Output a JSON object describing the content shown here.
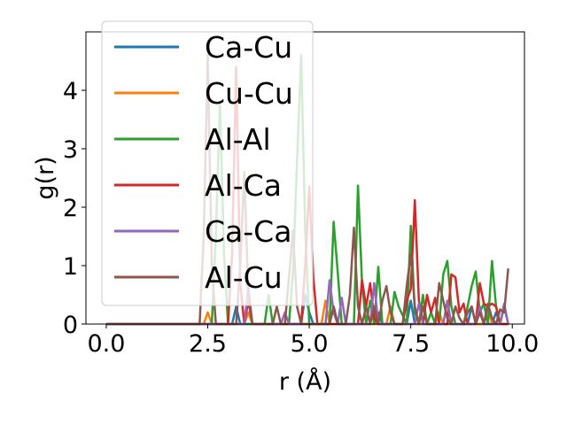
{
  "chart_data": {
    "type": "line",
    "xlabel": "r (Å)",
    "ylabel": "g(r)",
    "xlim": [
      -0.5,
      10.3
    ],
    "ylim": [
      0,
      5.0
    ],
    "x_ticks": [
      0.0,
      2.5,
      5.0,
      7.5,
      10.0
    ],
    "x_tick_labels": [
      "0.0",
      "2.5",
      "5.0",
      "7.5",
      "10.0"
    ],
    "y_ticks": [
      0,
      1,
      2,
      3,
      4
    ],
    "y_tick_labels": [
      "0",
      "1",
      "2",
      "3",
      "4"
    ],
    "grid": false,
    "legend_position": "top-left",
    "series": [
      {
        "name": "Ca-Cu",
        "color": "#1f77b4",
        "points": [
          [
            0,
            0
          ],
          [
            3.1,
            0
          ],
          [
            3.2,
            0.3
          ],
          [
            3.3,
            0
          ],
          [
            4.8,
            0
          ],
          [
            4.9,
            0.5
          ],
          [
            5.0,
            0.2
          ],
          [
            5.1,
            0
          ],
          [
            5.5,
            0
          ],
          [
            5.6,
            0.3
          ],
          [
            5.7,
            0
          ],
          [
            6.6,
            0
          ],
          [
            6.7,
            0.2
          ],
          [
            6.8,
            0
          ],
          [
            7.4,
            0
          ],
          [
            7.5,
            0.4
          ],
          [
            7.6,
            0
          ],
          [
            8.9,
            0
          ],
          [
            9.0,
            0.3
          ],
          [
            9.1,
            0
          ],
          [
            9.5,
            0
          ],
          [
            9.6,
            0.2
          ],
          [
            9.7,
            0
          ],
          [
            9.9,
            0
          ]
        ]
      },
      {
        "name": "Cu-Cu",
        "color": "#ff7f0e",
        "points": [
          [
            0,
            0
          ],
          [
            2.4,
            0
          ],
          [
            2.5,
            0.2
          ],
          [
            2.6,
            0
          ],
          [
            3.4,
            0
          ],
          [
            3.5,
            0.2
          ],
          [
            3.6,
            0
          ],
          [
            5.3,
            0
          ],
          [
            5.4,
            0.4
          ],
          [
            5.5,
            0
          ],
          [
            6.9,
            0
          ],
          [
            7.0,
            0.3
          ],
          [
            7.1,
            0
          ],
          [
            8.1,
            0
          ],
          [
            8.2,
            0.2
          ],
          [
            8.3,
            0
          ],
          [
            9.3,
            0
          ],
          [
            9.4,
            0.3
          ],
          [
            9.5,
            0
          ],
          [
            9.9,
            0
          ]
        ]
      },
      {
        "name": "Al-Al",
        "color": "#2ca02c",
        "points": [
          [
            0,
            0
          ],
          [
            2.6,
            0
          ],
          [
            2.7,
            1.5
          ],
          [
            2.8,
            3.8
          ],
          [
            2.9,
            1.2
          ],
          [
            3.0,
            0
          ],
          [
            3.9,
            0
          ],
          [
            4.0,
            0.5
          ],
          [
            4.1,
            0
          ],
          [
            4.5,
            0
          ],
          [
            4.6,
            0.9
          ],
          [
            4.7,
            2.8
          ],
          [
            4.8,
            4.6
          ],
          [
            4.9,
            1.6
          ],
          [
            5.0,
            0
          ],
          [
            5.5,
            0
          ],
          [
            5.6,
            1.75
          ],
          [
            5.7,
            0.9
          ],
          [
            5.8,
            0
          ],
          [
            6.1,
            0
          ],
          [
            6.2,
            2.37
          ],
          [
            6.3,
            0.7
          ],
          [
            6.4,
            0
          ],
          [
            6.5,
            0.4
          ],
          [
            6.6,
            0
          ],
          [
            6.7,
            0.98
          ],
          [
            6.8,
            0
          ],
          [
            7.0,
            0
          ],
          [
            7.1,
            0.55
          ],
          [
            7.2,
            0.3
          ],
          [
            7.4,
            0
          ],
          [
            7.5,
            1.68
          ],
          [
            7.6,
            0.2
          ],
          [
            7.7,
            0
          ],
          [
            7.8,
            0.5
          ],
          [
            7.9,
            0
          ],
          [
            8.0,
            0.2
          ],
          [
            8.1,
            0
          ],
          [
            8.2,
            0
          ],
          [
            8.3,
            0.85
          ],
          [
            8.4,
            1.08
          ],
          [
            8.5,
            0.3
          ],
          [
            8.6,
            0
          ],
          [
            8.8,
            0
          ],
          [
            8.9,
            0.3
          ],
          [
            9.0,
            0.65
          ],
          [
            9.1,
            0.9
          ],
          [
            9.2,
            0.2
          ],
          [
            9.3,
            0.35
          ],
          [
            9.4,
            0
          ],
          [
            9.5,
            1.08
          ],
          [
            9.6,
            0.3
          ],
          [
            9.7,
            0
          ],
          [
            9.8,
            0.3
          ],
          [
            9.9,
            0
          ]
        ]
      },
      {
        "name": "Al-Ca",
        "color": "#d62728",
        "points": [
          [
            0,
            0
          ],
          [
            3.0,
            0
          ],
          [
            3.1,
            1.2
          ],
          [
            3.2,
            4.4
          ],
          [
            3.3,
            0.7
          ],
          [
            3.4,
            0
          ],
          [
            3.5,
            0.4
          ],
          [
            3.6,
            0
          ],
          [
            4.8,
            0
          ],
          [
            4.9,
            1.0
          ],
          [
            5.0,
            2.35
          ],
          [
            5.1,
            0.8
          ],
          [
            5.2,
            0
          ],
          [
            6.2,
            0
          ],
          [
            6.3,
            0.75
          ],
          [
            6.4,
            0.3
          ],
          [
            6.5,
            0.7
          ],
          [
            6.6,
            0.1
          ],
          [
            6.7,
            0
          ],
          [
            7.3,
            0
          ],
          [
            7.4,
            0.4
          ],
          [
            7.5,
            0.6
          ],
          [
            7.6,
            2.12
          ],
          [
            7.7,
            0.4
          ],
          [
            7.8,
            0
          ],
          [
            7.9,
            0.5
          ],
          [
            8.0,
            0.2
          ],
          [
            8.1,
            0.45
          ],
          [
            8.2,
            0
          ],
          [
            8.4,
            0
          ],
          [
            8.5,
            0.85
          ],
          [
            8.6,
            0.8
          ],
          [
            8.7,
            0.2
          ],
          [
            8.8,
            0.35
          ],
          [
            8.9,
            0
          ],
          [
            9.1,
            0
          ],
          [
            9.2,
            0.7
          ],
          [
            9.3,
            0.35
          ],
          [
            9.4,
            0.3
          ],
          [
            9.5,
            0.35
          ],
          [
            9.6,
            0.3
          ],
          [
            9.7,
            0
          ],
          [
            9.9,
            0
          ]
        ]
      },
      {
        "name": "Ca-Ca",
        "color": "#9467bd",
        "points": [
          [
            0,
            0
          ],
          [
            3.4,
            0
          ],
          [
            3.5,
            0.65
          ],
          [
            3.6,
            0
          ],
          [
            4.3,
            0
          ],
          [
            4.4,
            0.2
          ],
          [
            4.5,
            0
          ],
          [
            5.4,
            0
          ],
          [
            5.5,
            0.75
          ],
          [
            5.6,
            0.2
          ],
          [
            5.7,
            0
          ],
          [
            5.8,
            0.45
          ],
          [
            5.9,
            0
          ],
          [
            6.5,
            0
          ],
          [
            6.6,
            0.7
          ],
          [
            6.7,
            0
          ],
          [
            7.6,
            0
          ],
          [
            7.7,
            0.35
          ],
          [
            7.8,
            0
          ],
          [
            8.3,
            0
          ],
          [
            8.4,
            0.4
          ],
          [
            8.5,
            0
          ],
          [
            9.1,
            0
          ],
          [
            9.2,
            0.3
          ],
          [
            9.3,
            0
          ],
          [
            9.7,
            0
          ],
          [
            9.8,
            0.35
          ],
          [
            9.9,
            0
          ]
        ]
      },
      {
        "name": "Al-Cu",
        "color": "#8c564b",
        "points": [
          [
            0,
            0
          ],
          [
            2.3,
            0
          ],
          [
            2.4,
            1.5
          ],
          [
            2.5,
            4.6
          ],
          [
            2.6,
            1.0
          ],
          [
            2.7,
            0
          ],
          [
            3.2,
            0
          ],
          [
            3.3,
            1.0
          ],
          [
            3.4,
            2.6
          ],
          [
            3.5,
            0.5
          ],
          [
            3.6,
            0
          ],
          [
            4.1,
            0
          ],
          [
            4.2,
            0.3
          ],
          [
            4.3,
            0
          ],
          [
            4.4,
            0
          ],
          [
            4.5,
            0.8
          ],
          [
            4.6,
            1.6
          ],
          [
            4.7,
            0.3
          ],
          [
            4.8,
            0
          ],
          [
            5.5,
            0
          ],
          [
            5.6,
            0.3
          ],
          [
            5.7,
            0
          ],
          [
            5.9,
            0
          ],
          [
            6.0,
            0.5
          ],
          [
            6.1,
            1.65
          ],
          [
            6.2,
            0.3
          ],
          [
            6.3,
            0
          ],
          [
            6.4,
            0.3
          ],
          [
            6.5,
            0
          ],
          [
            6.6,
            0.3
          ],
          [
            6.7,
            0
          ],
          [
            6.8,
            0.4
          ],
          [
            6.9,
            0.65
          ],
          [
            7.0,
            0.2
          ],
          [
            7.1,
            0
          ],
          [
            7.3,
            0
          ],
          [
            7.4,
            0.65
          ],
          [
            7.5,
            1.2
          ],
          [
            7.6,
            0.3
          ],
          [
            7.7,
            0
          ],
          [
            7.8,
            0.3
          ],
          [
            7.9,
            0
          ],
          [
            8.1,
            0
          ],
          [
            8.2,
            0.7
          ],
          [
            8.3,
            0.4
          ],
          [
            8.4,
            0.1
          ],
          [
            8.5,
            0
          ],
          [
            8.6,
            0.3
          ],
          [
            8.7,
            0.1
          ],
          [
            8.8,
            0
          ],
          [
            8.9,
            0.2
          ],
          [
            9.0,
            0.3
          ],
          [
            9.1,
            0
          ],
          [
            9.2,
            0.2
          ],
          [
            9.3,
            0
          ],
          [
            9.4,
            0.35
          ],
          [
            9.5,
            0.1
          ],
          [
            9.6,
            0
          ],
          [
            9.7,
            0.25
          ],
          [
            9.8,
            0.2
          ],
          [
            9.9,
            0.95
          ]
        ]
      }
    ]
  }
}
